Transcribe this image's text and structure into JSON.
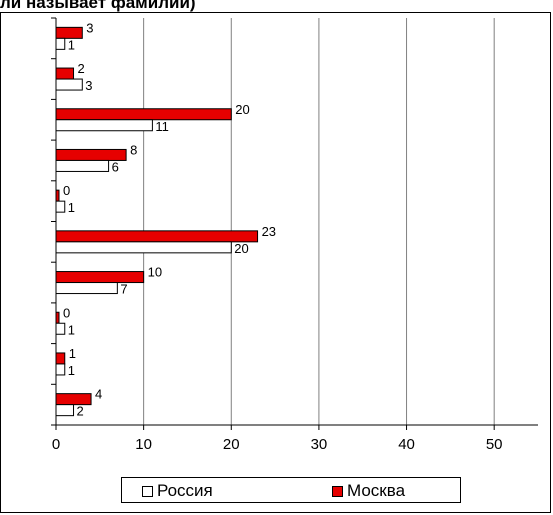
{
  "title": "ли называет фамилии)",
  "chart_data": {
    "type": "bar",
    "orientation": "horizontal",
    "categories": [
      "",
      "",
      "",
      "",
      "",
      "",
      "",
      "",
      "",
      ""
    ],
    "series": [
      {
        "name": "Россия",
        "color": "#ffffff",
        "values": [
          1,
          3,
          11,
          6,
          1,
          20,
          7,
          1,
          1,
          2
        ]
      },
      {
        "name": "Москва",
        "color": "#e60000",
        "values": [
          3,
          2,
          20,
          8,
          0,
          23,
          10,
          0,
          1,
          4
        ]
      }
    ],
    "xlim": [
      0,
      55
    ],
    "xticks": [
      0,
      10,
      20,
      30,
      40,
      50
    ],
    "grid": true,
    "legend_position": "bottom"
  }
}
